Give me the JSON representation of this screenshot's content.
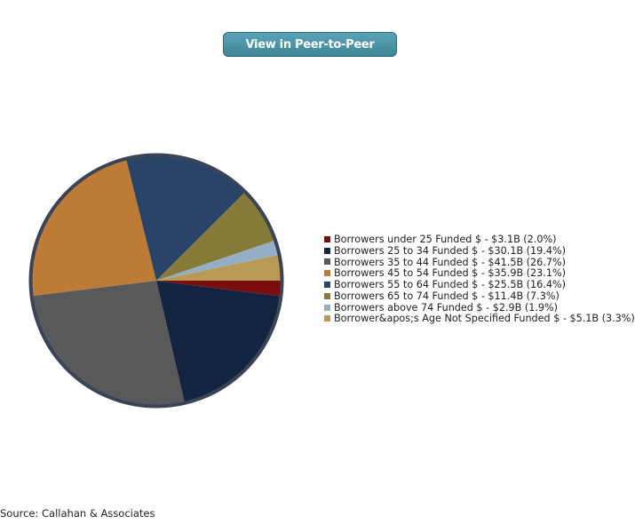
{
  "button": {
    "label": "View in Peer-to-Peer"
  },
  "chart_data": {
    "type": "pie",
    "title": "",
    "slices": [
      {
        "label": "Borrowers under 25 Funded $ - $3.1B (2.0%)",
        "value": 2.0,
        "color": "#7a0e0e"
      },
      {
        "label": "Borrowers 25 to 34 Funded $ - $30.1B (19.4%)",
        "value": 19.4,
        "color": "#12243f"
      },
      {
        "label": "Borrowers 35 to 44 Funded $ - $41.5B (26.7%)",
        "value": 26.7,
        "color": "#58595b"
      },
      {
        "label": "Borrowers 45 to 54 Funded $ - $35.9B (23.1%)",
        "value": 23.1,
        "color": "#bd7b36"
      },
      {
        "label": "Borrowers 55 to 64 Funded $ - $25.5B (16.4%)",
        "value": 16.4,
        "color": "#2a4468"
      },
      {
        "label": "Borrowers 65 to 74 Funded $ - $11.4B (7.3%)",
        "value": 7.3,
        "color": "#857a38"
      },
      {
        "label": "Borrowers above 74 Funded $ - $2.9B (1.9%)",
        "value": 1.9,
        "color": "#94aec6"
      },
      {
        "label": "Borrower&apos;s Age Not Specified Funded $ - $5.1B (3.3%)",
        "value": 3.3,
        "color": "#b89a54"
      }
    ],
    "start_direction": "east",
    "direction": "clockwise",
    "border_color": "#3a4456",
    "legend_position": "right"
  },
  "source": "Source: Callahan & Associates"
}
